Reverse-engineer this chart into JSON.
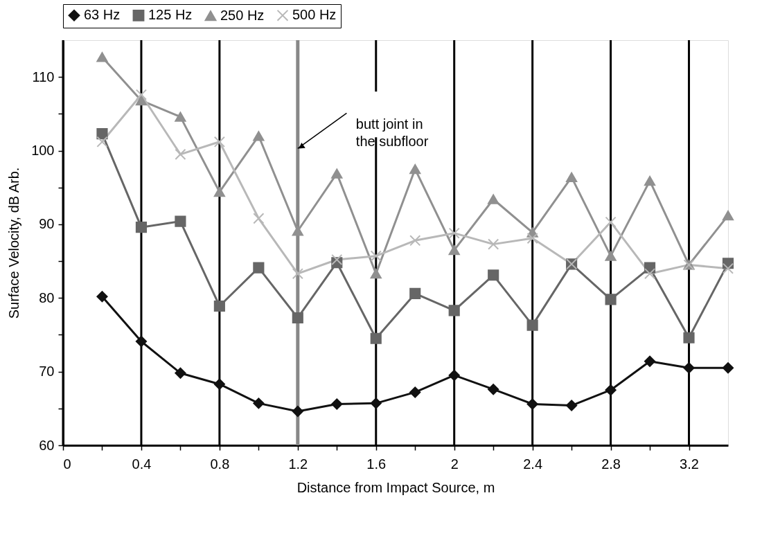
{
  "chart_data": {
    "type": "line",
    "xlabel": "Distance from Impact Source, m",
    "ylabel": "Surface Velocity, dB Arb.",
    "x": [
      0.2,
      0.4,
      0.6,
      0.8,
      1.0,
      1.2,
      1.4,
      1.6,
      1.8,
      2.0,
      2.2,
      2.4,
      2.6,
      2.8,
      3.0,
      3.2,
      3.4
    ],
    "series": [
      {
        "name": "63 Hz",
        "color": "#111111",
        "marker": "diamond",
        "values": [
          80.2,
          74.1,
          69.8,
          68.3,
          65.7,
          64.6,
          65.6,
          65.7,
          67.2,
          69.5,
          67.6,
          65.6,
          65.4,
          67.5,
          71.4,
          70.5,
          70.5
        ]
      },
      {
        "name": "125 Hz",
        "color": "#666666",
        "marker": "square",
        "values": [
          102.3,
          89.6,
          90.4,
          78.9,
          84.1,
          77.3,
          84.8,
          74.5,
          80.6,
          78.3,
          83.1,
          76.3,
          84.6,
          79.8,
          84.1,
          74.6,
          84.7
        ]
      },
      {
        "name": "250 Hz",
        "color": "#909090",
        "marker": "triangle",
        "values": [
          112.7,
          106.8,
          104.6,
          94.4,
          102.0,
          89.1,
          96.9,
          83.3,
          97.5,
          86.5,
          93.4,
          88.9,
          96.4,
          85.7,
          95.9,
          84.5,
          91.2
        ]
      },
      {
        "name": "500 Hz",
        "color": "#b8b8b8",
        "marker": "cross",
        "values": [
          101.2,
          107.6,
          99.5,
          101.2,
          90.8,
          83.3,
          85.2,
          85.7,
          87.8,
          88.8,
          87.3,
          88.1,
          84.6,
          90.3,
          83.3,
          84.5,
          84.0
        ]
      }
    ],
    "xlim": [
      0,
      3.4
    ],
    "xticks": [
      0,
      {
        "value": 0.2,
        "label": null
      },
      0.4,
      {
        "value": 0.6,
        "label": null
      },
      0.8,
      {
        "value": 1.0,
        "label": null
      },
      1.2,
      {
        "value": 1.4,
        "label": null
      },
      1.6,
      {
        "value": 1.8,
        "label": null
      },
      2,
      {
        "value": 2.2,
        "label": null
      },
      2.4,
      {
        "value": 2.6,
        "label": null
      },
      2.8,
      {
        "value": 3.0,
        "label": null
      },
      3.2
    ],
    "ylim": [
      60,
      115
    ],
    "yticks": [
      60,
      {
        "value": 65,
        "label": null
      },
      70,
      {
        "value": 75,
        "label": null
      },
      80,
      {
        "value": 85,
        "label": null
      },
      90,
      {
        "value": 95,
        "label": null
      },
      100,
      {
        "value": 105,
        "label": null
      },
      110
    ],
    "grid": "x",
    "legend": "top",
    "line_style": "solid",
    "ref_lines": [
      {
        "axis": "x",
        "value": 1.2,
        "color": "#888888"
      }
    ],
    "annotations": [
      {
        "text": "butt joint in\nthe subfloor",
        "x": 1.2,
        "y": 100.3
      }
    ]
  }
}
